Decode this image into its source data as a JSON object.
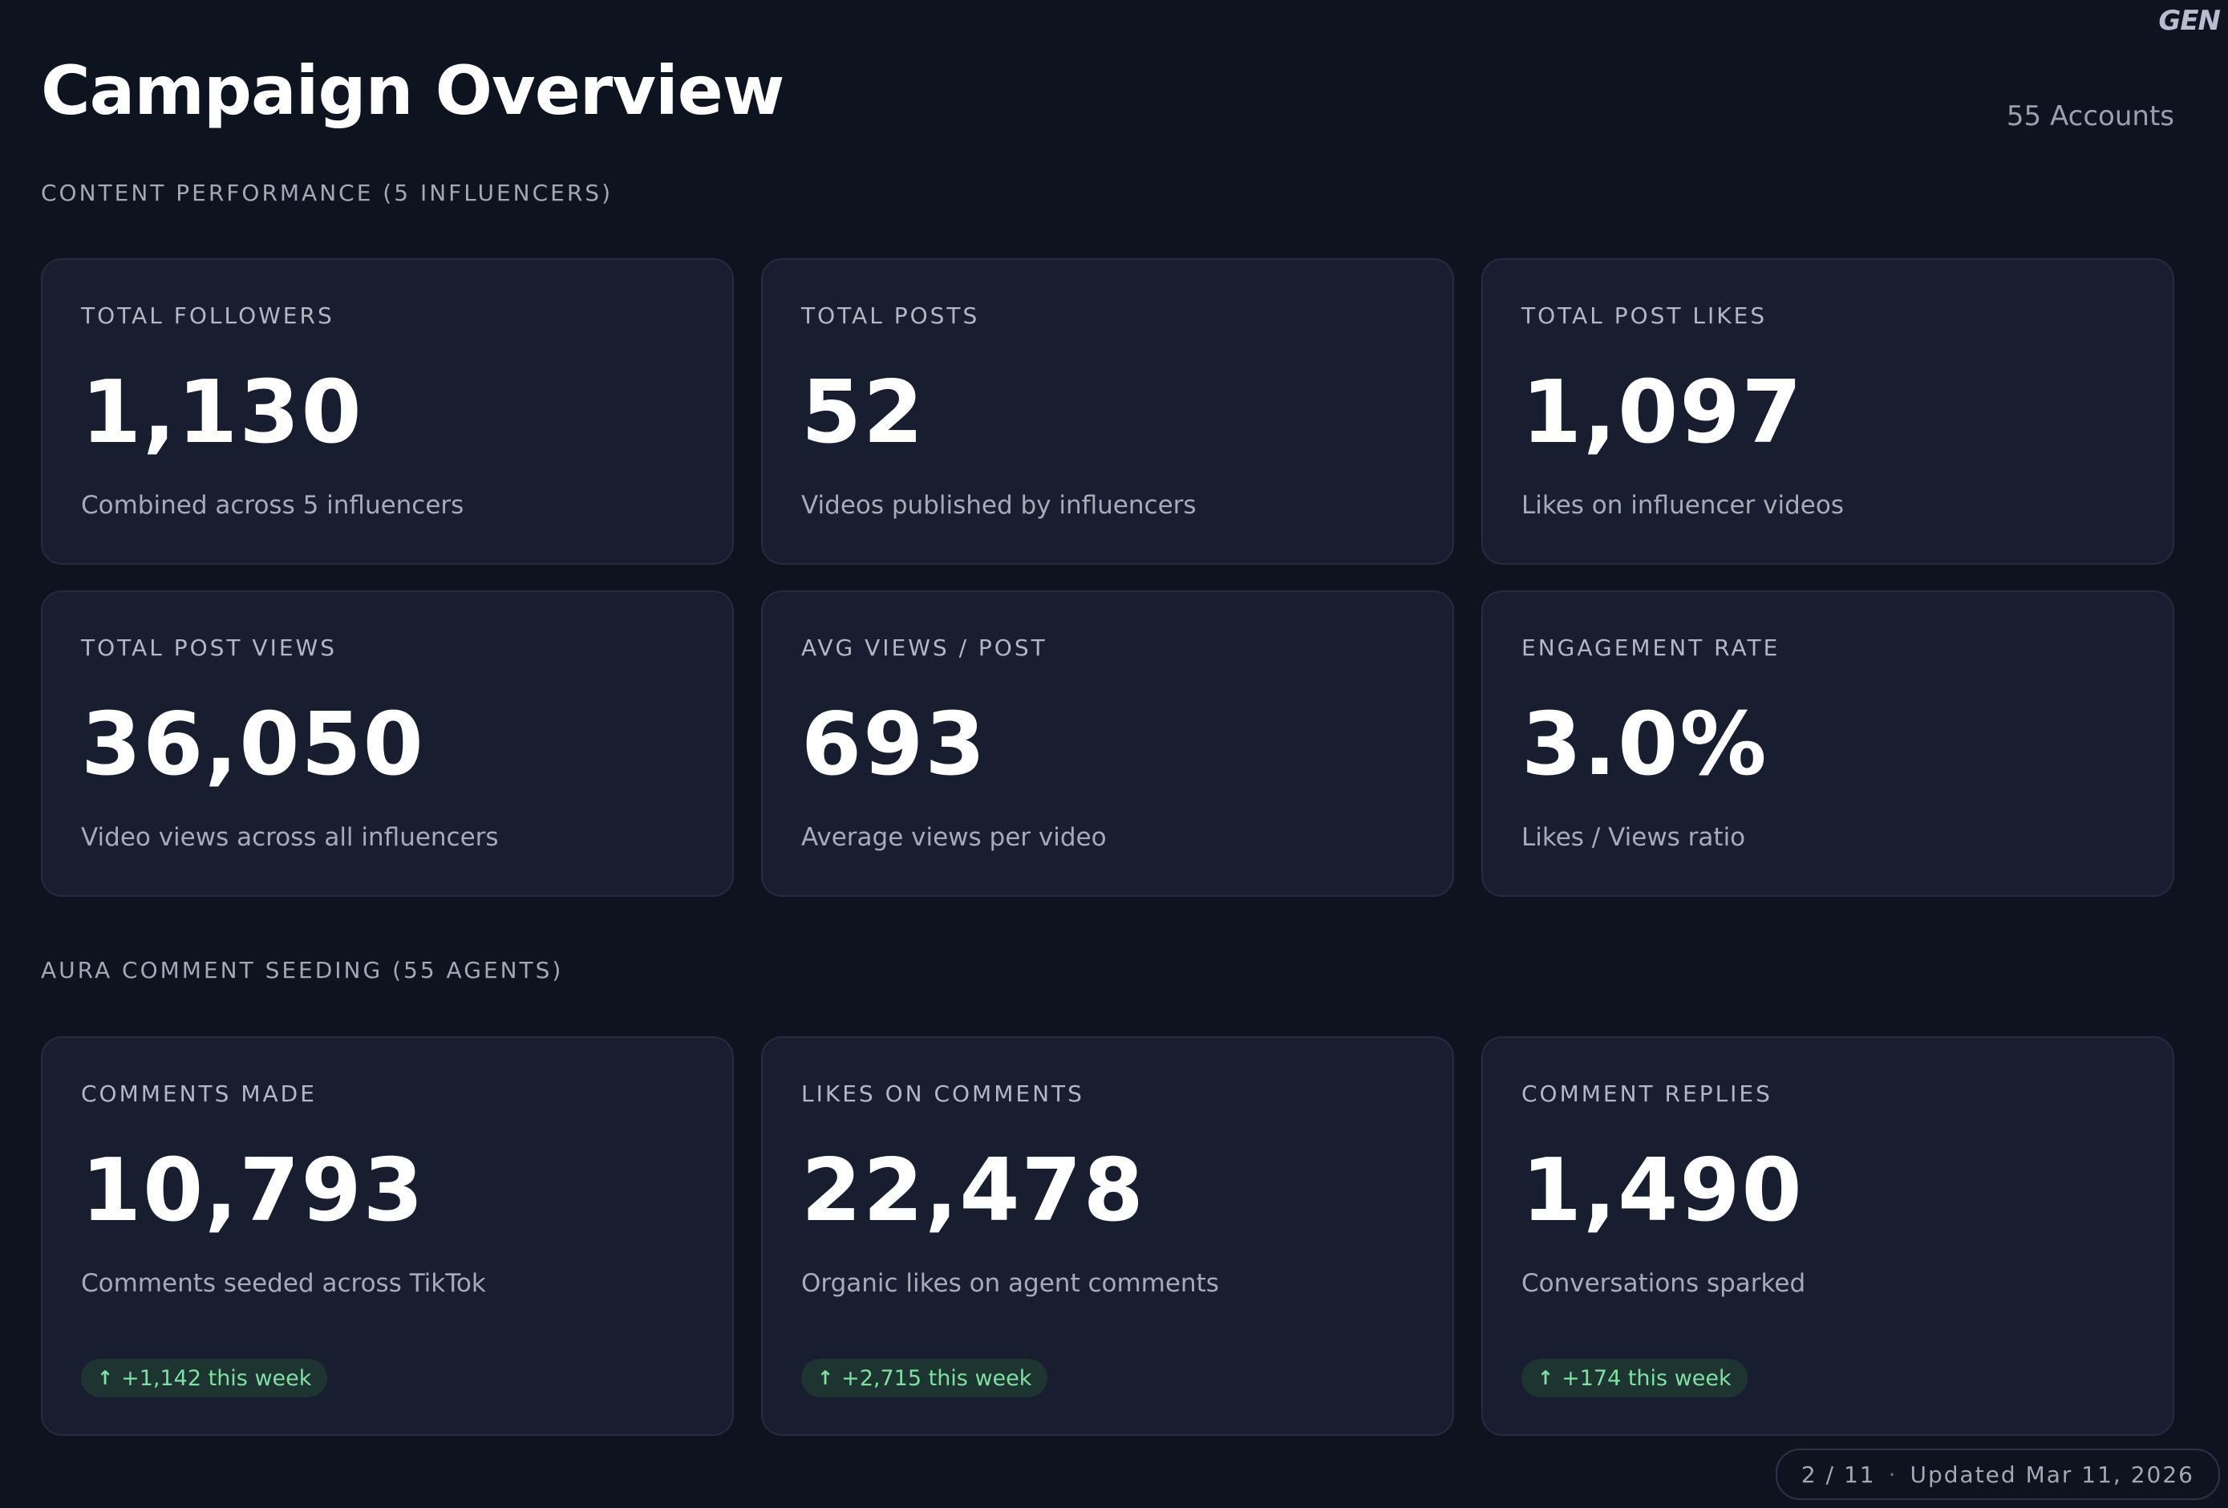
{
  "logo": "GEN",
  "header": {
    "title": "Campaign Overview",
    "accounts": "55 Accounts"
  },
  "sections": {
    "content": {
      "label": "CONTENT PERFORMANCE (5 INFLUENCERS)",
      "cards": [
        {
          "label": "TOTAL FOLLOWERS",
          "value": "1,130",
          "sub": "Combined across 5 influencers"
        },
        {
          "label": "TOTAL POSTS",
          "value": "52",
          "sub": "Videos published by influencers"
        },
        {
          "label": "TOTAL POST LIKES",
          "value": "1,097",
          "sub": "Likes on influencer videos"
        },
        {
          "label": "TOTAL POST VIEWS",
          "value": "36,050",
          "sub": "Video views across all influencers"
        },
        {
          "label": "AVG VIEWS / POST",
          "value": "693",
          "sub": "Average views per video"
        },
        {
          "label": "ENGAGEMENT RATE",
          "value": "3.0%",
          "sub": "Likes / Views ratio"
        }
      ]
    },
    "seeding": {
      "label": "AURA COMMENT SEEDING (55 AGENTS)",
      "cards": [
        {
          "label": "COMMENTS MADE",
          "value": "10,793",
          "sub": "Comments seeded across TikTok",
          "badge": "+1,142 this week"
        },
        {
          "label": "LIKES ON COMMENTS",
          "value": "22,478",
          "sub": "Organic likes on agent comments",
          "badge": "+2,715 this week"
        },
        {
          "label": "COMMENT REPLIES",
          "value": "1,490",
          "sub": "Conversations sparked",
          "badge": "+174 this week"
        }
      ]
    }
  },
  "footer": {
    "page": "2 / 11",
    "separator": "·",
    "updated": "Updated Mar 11, 2026"
  },
  "colors": {
    "background": "#0e1320",
    "card": "#181d30",
    "badge_bg": "#1e3431",
    "badge_text": "#7fe0a4"
  },
  "icons": {
    "badge": "arrow-up-icon"
  }
}
